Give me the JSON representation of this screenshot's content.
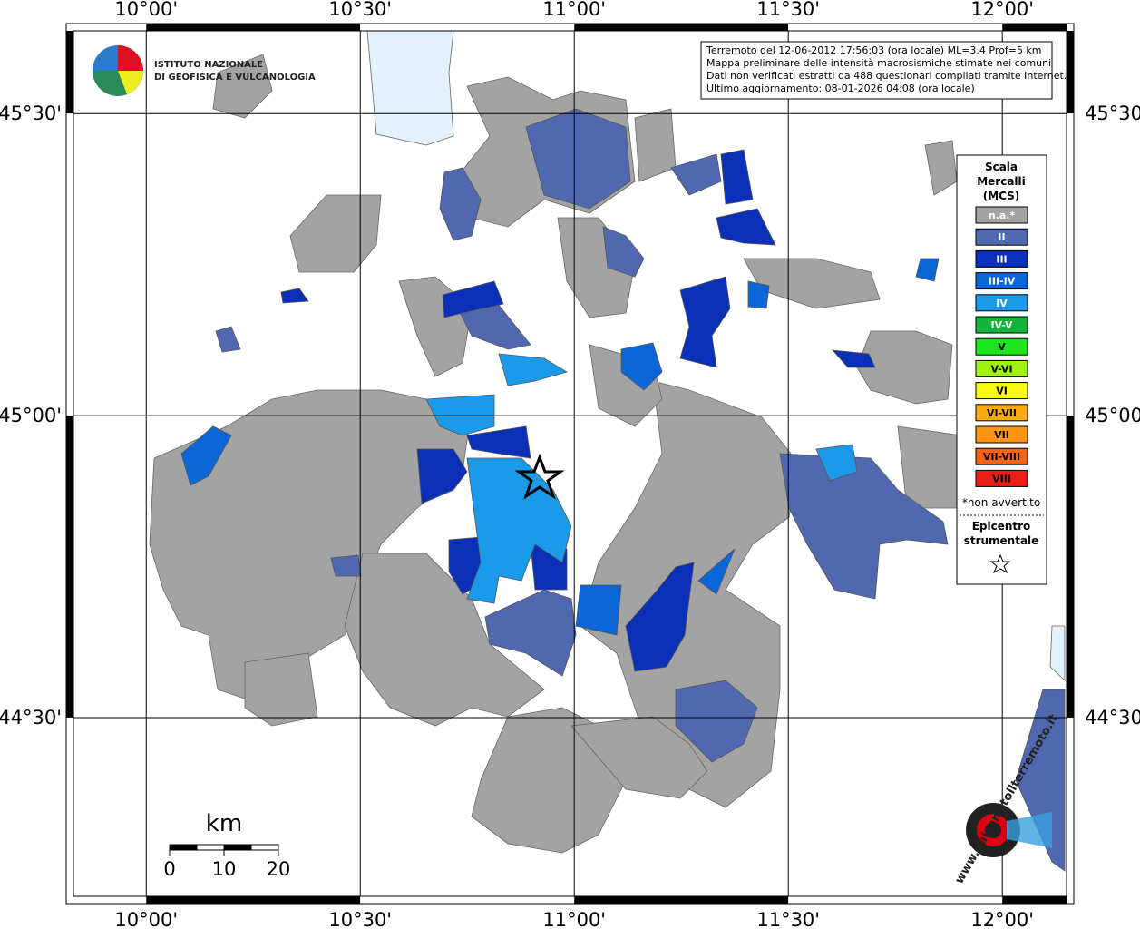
{
  "map": {
    "xlim": [
      9.83,
      12.15
    ],
    "ylim": [
      44.204,
      45.637
    ],
    "lon_ticks": [
      {
        "value": 10.0,
        "label": "10°00'"
      },
      {
        "value": 10.5,
        "label": "10°30'"
      },
      {
        "value": 11.0,
        "label": "11°00'"
      },
      {
        "value": 11.5,
        "label": "11°30'"
      },
      {
        "value": 12.0,
        "label": "12°00'"
      }
    ],
    "lat_ticks": [
      {
        "value": 45.5,
        "label": "45°30'"
      },
      {
        "value": 45.0,
        "label": "45°00'"
      },
      {
        "value": 44.5,
        "label": "44°30'"
      }
    ],
    "info": [
      "Terremoto del 12-06-2012 17:56:03 (ora locale) ML=3.4 Prof=5 km",
      "Mappa preliminare delle intensità macrosismiche stimate nei comuni",
      "Dati non verificati estratti da 488 questionari compilati tramite Internet.",
      "Ultimo aggiornamento: 08-01-2026 04:08 (ora locale)"
    ],
    "logo": [
      "ISTITUTO NAZIONALE",
      "DI GEOFISICA E VULCANOLOGIA"
    ],
    "site_logo": "www.haisentitoilterremoto.it",
    "legend": {
      "title": [
        "Scala",
        "Mercalli",
        "(MCS)"
      ],
      "items": [
        {
          "label": "n.a.*",
          "color": "#a3a3a3",
          "text_color": "#ffffff"
        },
        {
          "label": "II",
          "color": "#5068b0",
          "text_color": "#ffffff"
        },
        {
          "label": "III",
          "color": "#0b30b8",
          "text_color": "#ffffff"
        },
        {
          "label": "III-IV",
          "color": "#0a66d6",
          "text_color": "#ffffff"
        },
        {
          "label": "IV",
          "color": "#1a9ae8",
          "text_color": "#ffffff"
        },
        {
          "label": "IV-V",
          "color": "#14b43c",
          "text_color": "#ffffff"
        },
        {
          "label": "V",
          "color": "#1ee61e",
          "text_color": "#000000"
        },
        {
          "label": "V-VI",
          "color": "#a0f014",
          "text_color": "#000000"
        },
        {
          "label": "VI",
          "color": "#fafa14",
          "text_color": "#000000"
        },
        {
          "label": "VI-VII",
          "color": "#faaa0a",
          "text_color": "#000000"
        },
        {
          "label": "VII",
          "color": "#fa9614",
          "text_color": "#000000"
        },
        {
          "label": "VII-VIII",
          "color": "#f56414",
          "text_color": "#000000"
        },
        {
          "label": "VIII",
          "color": "#ee1e14",
          "text_color": "#000000"
        }
      ],
      "note": "*non avvertito",
      "epicenter": [
        "Epicentro",
        "strumentale"
      ]
    },
    "scale_bar": {
      "unit": "km",
      "ticks": [
        0,
        10,
        20
      ]
    }
  }
}
